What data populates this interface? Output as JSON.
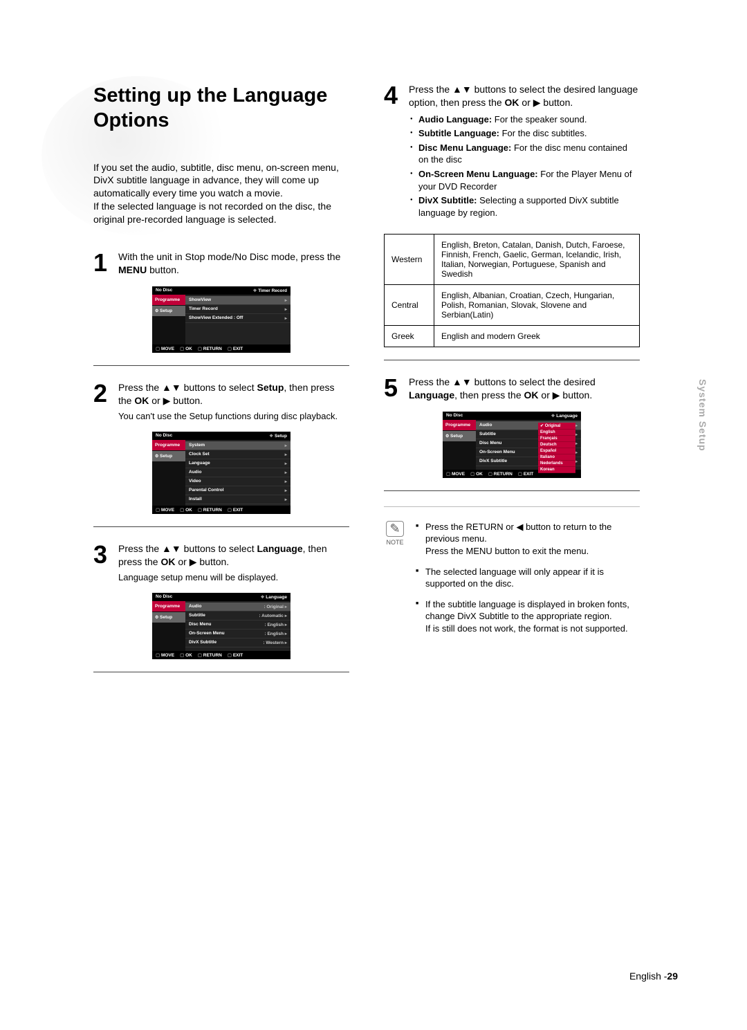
{
  "title": "Setting up the Language Options",
  "intro": "If you set the audio, subtitle, disc menu, on-screen menu, DivX subtitle language in advance, they will come up automatically every time you watch a movie.\nIf the selected language is not recorded on the disc, the original pre-recorded language is selected.",
  "sidetab": "System Setup",
  "footer_lang": "English -",
  "footer_page": "29",
  "steps": {
    "s1": {
      "num": "1",
      "text_a": "With the unit in Stop mode/No Disc mode, press the ",
      "menu": "MENU",
      "text_b": " button."
    },
    "s2": {
      "num": "2",
      "text_a": "Press the ▲▼ buttons to select ",
      "setup": "Setup",
      "text_b": ", then press the ",
      "ok": "OK",
      "text_c": " or ▶ button.",
      "sub": "You can't use the Setup functions during disc playback."
    },
    "s3": {
      "num": "3",
      "text_a": "Press the ▲▼ buttons to select ",
      "language": "Language",
      "text_b": ", then press the ",
      "ok": "OK",
      "text_c": " or ▶ button.",
      "sub": "Language setup menu will be displayed."
    },
    "s4": {
      "num": "4",
      "text_a": "Press the ▲▼ buttons to select the desired language option, then press the ",
      "ok": "OK",
      "text_b": " or ▶ button.",
      "bullets": [
        {
          "b": "Audio Language:",
          "t": " For the speaker sound."
        },
        {
          "b": "Subtitle Language:",
          "t": " For the disc subtitles."
        },
        {
          "b": "Disc Menu Language:",
          "t": " For the disc menu contained on the disc"
        },
        {
          "b": "On-Screen Menu Language:",
          "t": " For the Player Menu of your DVD Recorder"
        },
        {
          "b": "DivX Subtitle:",
          "t": " Selecting a supported DivX subtitle language by region."
        }
      ]
    },
    "s5": {
      "num": "5",
      "text_a": "Press the ▲▼ buttons to select the desired ",
      "language": "Language",
      "text_b": ", then press the ",
      "ok": "OK",
      "text_c": " or ▶ button."
    }
  },
  "region_table": [
    {
      "region": "Western",
      "langs": "English, Breton, Catalan, Danish, Dutch, Faroese, Finnish, French, Gaelic, German, Icelandic, Irish, Italian, Norwegian, Portuguese, Spanish and Swedish"
    },
    {
      "region": "Central",
      "langs": "English, Albanian, Croatian, Czech, Hungarian, Polish, Romanian, Slovak, Slovene and Serbian(Latin)"
    },
    {
      "region": "Greek",
      "langs": "English and modern Greek"
    }
  ],
  "note": {
    "label": "NOTE",
    "items": [
      "Press the RETURN or ◀ button to return to the previous menu.\nPress the MENU button to exit the menu.",
      "The selected language will only appear if it is supported on the disc.",
      "If the subtitle language is displayed in broken fonts, change DivX Subtitle to the appropriate region.\nIf is still does not work, the format is not supported."
    ]
  },
  "osd": {
    "nodisc": "No Disc",
    "left_prog": "Programme",
    "left_setup": "Setup",
    "bot_move": "MOVE",
    "bot_ok": "OK",
    "bot_return": "RETURN",
    "bot_exit": "EXIT",
    "screen1": {
      "crumb": "Timer Record",
      "rows": [
        "ShowView",
        "Timer Record",
        "ShowView Extended : Off"
      ]
    },
    "screen2": {
      "crumb": "Setup",
      "rows": [
        "System",
        "Clock Set",
        "Language",
        "Audio",
        "Video",
        "Parental Control",
        "Install"
      ]
    },
    "screen3": {
      "crumb": "Language",
      "rows": [
        {
          "k": "Audio",
          "v": ": Original"
        },
        {
          "k": "Subtitle",
          "v": ": Automatic"
        },
        {
          "k": "Disc Menu",
          "v": ": English"
        },
        {
          "k": "On-Screen Menu",
          "v": ": English"
        },
        {
          "k": "DivX Subtitle",
          "v": ": Western"
        }
      ]
    },
    "screen5": {
      "crumb": "Language",
      "rows": [
        "Audio",
        "Subtitle",
        "Disc Menu",
        "On-Screen Menu",
        "DivX Subtitle"
      ],
      "popup": [
        "Original",
        "English",
        "Français",
        "Deutsch",
        "Español",
        "Italiano",
        "Nederlands",
        "Korean"
      ]
    }
  }
}
